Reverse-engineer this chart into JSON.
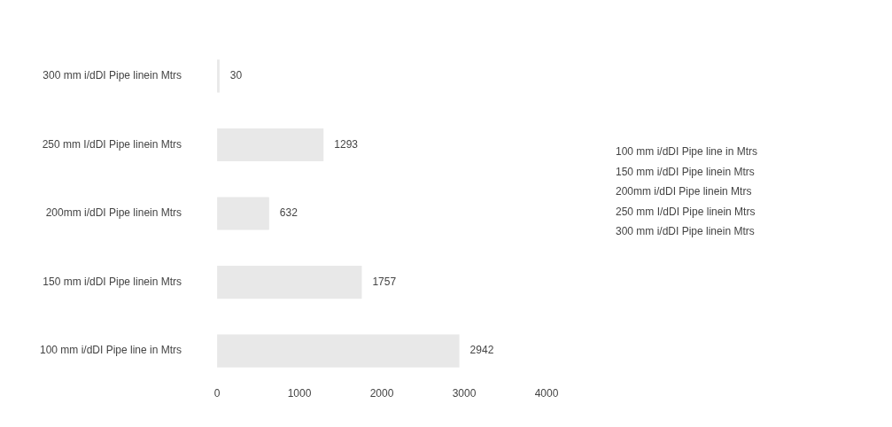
{
  "chart_data": {
    "type": "bar",
    "orientation": "horizontal",
    "categories": [
      "300 mm i/dDI Pipe linein Mtrs",
      "250 mm I/dDI Pipe linein Mtrs",
      "200mm i/dDI Pipe linein Mtrs",
      "150 mm i/dDI Pipe linein Mtrs",
      "100 mm i/dDI Pipe line in Mtrs"
    ],
    "values": [
      30,
      1293,
      632,
      1757,
      2942
    ],
    "colors": [
      "#e8e8e8",
      "#e8e8e8",
      "#e8e8e8",
      "#e8e8e8",
      "#e8e8e8"
    ],
    "xlim": [
      0,
      4000
    ],
    "xticks": [
      0,
      1000,
      2000,
      3000,
      4000
    ],
    "data_labels": true,
    "grid": false,
    "annotations": [
      "100 mm i/dDI Pipe line in Mtrs",
      "150 mm i/dDI Pipe linein Mtrs",
      "200mm i/dDI Pipe linein Mtrs",
      "250 mm I/dDI Pipe linein Mtrs",
      "300 mm i/dDI Pipe linein Mtrs"
    ]
  }
}
